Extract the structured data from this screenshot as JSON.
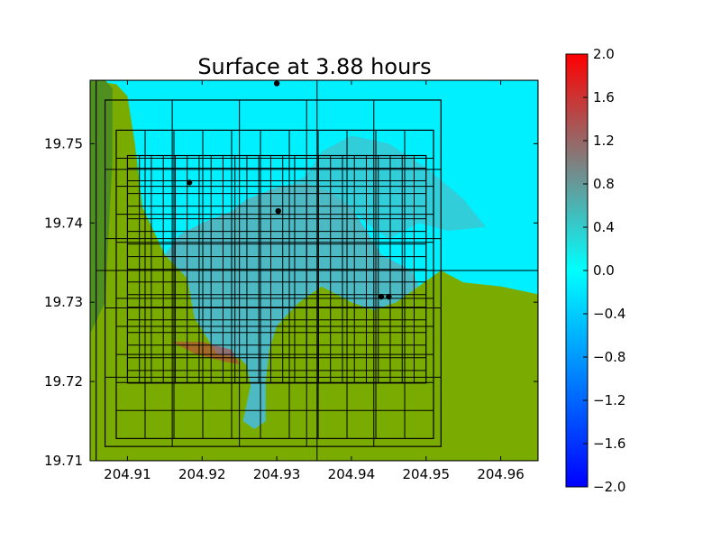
{
  "chart_data": {
    "type": "heatmap",
    "title": "Surface at 3.88 hours",
    "xlabel": "",
    "ylabel": "",
    "xlim": [
      204.905,
      204.965
    ],
    "ylim": [
      19.71,
      19.758
    ],
    "x_ticks": [
      204.91,
      204.92,
      204.93,
      204.94,
      204.95,
      204.96
    ],
    "x_tick_labels": [
      "204.91",
      "204.92",
      "204.93",
      "204.94",
      "204.95",
      "204.96"
    ],
    "y_ticks": [
      19.71,
      19.72,
      19.73,
      19.74,
      19.75
    ],
    "y_tick_labels": [
      "19.71",
      "19.72",
      "19.73",
      "19.74",
      "19.75"
    ],
    "colorbar": {
      "min": -2.0,
      "max": 2.0,
      "ticks": [
        2.0,
        1.6,
        1.2,
        0.8,
        0.4,
        0.0,
        -0.4,
        -0.8,
        -1.2,
        -1.6,
        -2.0
      ],
      "tick_labels": [
        "2.0",
        "1.6",
        "1.2",
        "0.8",
        "0.4",
        "0.0",
        "−0.4",
        "−0.8",
        "−1.2",
        "−1.6",
        "−2.0"
      ],
      "colors": [
        "#0000ff",
        "#00ffff",
        "#ff0000"
      ]
    },
    "colors": {
      "water": "#00f0ff",
      "inundated_land": "#5ab0b8",
      "land": "#7aab00",
      "dark_land": "#4f8f20",
      "grid_line": "#000000",
      "gauge": "#000000"
    },
    "grid_boxes": [
      {
        "x0": 204.9058,
        "x1": 204.965,
        "y0": 19.71,
        "y1": 19.758,
        "nx": 2,
        "ny": 2
      },
      {
        "x0": 204.907,
        "x1": 204.952,
        "y0": 19.7118,
        "y1": 19.7555,
        "nx": 5,
        "ny": 5
      },
      {
        "x0": 204.9085,
        "x1": 204.951,
        "y0": 19.7128,
        "y1": 19.7517,
        "nx": 11,
        "ny": 11
      },
      {
        "x0": 204.91,
        "x1": 204.95,
        "y0": 19.7198,
        "y1": 19.7485,
        "nx": 25,
        "ny": 18
      }
    ],
    "gauges": [
      {
        "x": 204.93,
        "y": 19.7576
      },
      {
        "x": 204.9183,
        "y": 19.7451
      },
      {
        "x": 204.9302,
        "y": 19.7415
      },
      {
        "x": 204.944,
        "y": 19.7307
      },
      {
        "x": 204.945,
        "y": 19.7307
      }
    ],
    "regions": {
      "dark_land": [
        [
          204.905,
          19.758
        ],
        [
          204.907,
          19.758
        ],
        [
          204.908,
          19.757
        ],
        [
          204.908,
          19.748
        ],
        [
          204.907,
          19.73
        ],
        [
          204.905,
          19.726
        ]
      ],
      "land": [
        [
          204.905,
          19.758
        ],
        [
          204.9085,
          19.7575
        ],
        [
          204.91,
          19.756
        ],
        [
          204.911,
          19.75
        ],
        [
          204.912,
          19.742
        ],
        [
          204.915,
          19.736
        ],
        [
          204.918,
          19.733
        ],
        [
          204.919,
          19.728
        ],
        [
          204.921,
          19.725
        ],
        [
          204.922,
          19.7235
        ],
        [
          204.925,
          19.723
        ],
        [
          204.926,
          19.722
        ],
        [
          204.9265,
          19.7195
        ],
        [
          204.9255,
          19.715
        ],
        [
          204.927,
          19.714
        ],
        [
          204.9285,
          19.715
        ],
        [
          204.9285,
          19.72
        ],
        [
          204.929,
          19.724
        ],
        [
          204.93,
          19.727
        ],
        [
          204.933,
          19.73
        ],
        [
          204.936,
          19.732
        ],
        [
          204.938,
          19.731
        ],
        [
          204.94,
          19.73
        ],
        [
          204.943,
          19.729
        ],
        [
          204.946,
          19.73
        ],
        [
          204.949,
          19.732
        ],
        [
          204.952,
          19.734
        ],
        [
          204.955,
          19.7325
        ],
        [
          204.96,
          19.732
        ],
        [
          204.965,
          19.731
        ],
        [
          204.965,
          19.71
        ],
        [
          204.905,
          19.71
        ]
      ],
      "inundation": [
        [
          204.915,
          19.736
        ],
        [
          204.918,
          19.733
        ],
        [
          204.919,
          19.728
        ],
        [
          204.921,
          19.725
        ],
        [
          204.922,
          19.7235
        ],
        [
          204.925,
          19.723
        ],
        [
          204.926,
          19.722
        ],
        [
          204.9265,
          19.7195
        ],
        [
          204.9255,
          19.715
        ],
        [
          204.927,
          19.714
        ],
        [
          204.9285,
          19.715
        ],
        [
          204.9285,
          19.72
        ],
        [
          204.929,
          19.724
        ],
        [
          204.93,
          19.727
        ],
        [
          204.933,
          19.73
        ],
        [
          204.936,
          19.732
        ],
        [
          204.94,
          19.73
        ],
        [
          204.943,
          19.729
        ],
        [
          204.946,
          19.73
        ],
        [
          204.949,
          19.732
        ],
        [
          204.948,
          19.734
        ],
        [
          204.946,
          19.735
        ],
        [
          204.944,
          19.736
        ],
        [
          204.942,
          19.739
        ],
        [
          204.94,
          19.742
        ],
        [
          204.937,
          19.744
        ],
        [
          204.934,
          19.745
        ],
        [
          204.93,
          19.7445
        ],
        [
          204.926,
          19.743
        ],
        [
          204.924,
          19.7415
        ],
        [
          204.92,
          19.74
        ],
        [
          204.917,
          19.7385
        ]
      ],
      "offshore_shading": [
        [
          204.931,
          19.7445
        ],
        [
          204.934,
          19.746
        ],
        [
          204.936,
          19.749
        ],
        [
          204.94,
          19.751
        ],
        [
          204.945,
          19.75
        ],
        [
          204.95,
          19.747
        ],
        [
          204.955,
          19.743
        ],
        [
          204.958,
          19.7395
        ],
        [
          204.953,
          19.739
        ],
        [
          204.949,
          19.74
        ],
        [
          204.945,
          19.738
        ],
        [
          204.942,
          19.74
        ],
        [
          204.94,
          19.742
        ],
        [
          204.937,
          19.744
        ],
        [
          204.934,
          19.745
        ]
      ],
      "red_patch": [
        [
          204.916,
          19.725
        ],
        [
          204.919,
          19.7235
        ],
        [
          204.923,
          19.7225
        ],
        [
          204.925,
          19.7222
        ],
        [
          204.924,
          19.724
        ],
        [
          204.92,
          19.725
        ]
      ]
    }
  }
}
